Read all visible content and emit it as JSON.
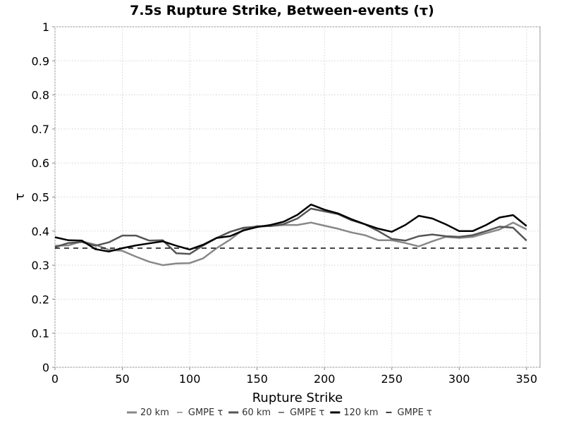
{
  "chart_data": {
    "type": "line",
    "title": "7.5s Rupture Strike, Between-events (τ)",
    "xlabel": "Rupture Strike",
    "ylabel": "τ",
    "xlim": [
      0,
      360
    ],
    "ylim": [
      0,
      1
    ],
    "xticks": [
      0,
      50,
      100,
      150,
      200,
      250,
      300,
      350
    ],
    "yticks": [
      0,
      0.1,
      0.2,
      0.3,
      0.4,
      0.5,
      0.6,
      0.7,
      0.8,
      0.9,
      1
    ],
    "grid": true,
    "legend_position": "bottom",
    "x": [
      0,
      10,
      20,
      30,
      40,
      50,
      60,
      70,
      80,
      90,
      100,
      110,
      120,
      130,
      140,
      150,
      160,
      170,
      180,
      190,
      200,
      210,
      220,
      230,
      240,
      250,
      260,
      270,
      280,
      290,
      300,
      310,
      320,
      330,
      340,
      350
    ],
    "series": [
      {
        "name": "20 km",
        "color": "#888888",
        "width": 2.5,
        "dash": "",
        "values": [
          0.357,
          0.358,
          0.37,
          0.36,
          0.345,
          0.342,
          0.325,
          0.31,
          0.3,
          0.305,
          0.306,
          0.32,
          0.35,
          0.375,
          0.405,
          0.415,
          0.415,
          0.418,
          0.418,
          0.425,
          0.416,
          0.407,
          0.396,
          0.388,
          0.373,
          0.373,
          0.365,
          0.355,
          0.37,
          0.383,
          0.38,
          0.383,
          0.394,
          0.405,
          0.425,
          0.405
        ]
      },
      {
        "name": "GMPE τ",
        "color": "#888888",
        "width": 1.2,
        "dash": "7,6",
        "values": [
          0.35,
          0.35,
          0.35,
          0.35,
          0.35,
          0.35,
          0.35,
          0.35,
          0.35,
          0.35,
          0.35,
          0.35,
          0.35,
          0.35,
          0.35,
          0.35,
          0.35,
          0.35,
          0.35,
          0.35,
          0.35,
          0.35,
          0.35,
          0.35,
          0.35,
          0.35,
          0.35,
          0.35,
          0.35,
          0.35,
          0.35,
          0.35,
          0.35,
          0.35,
          0.35,
          0.35
        ]
      },
      {
        "name": "60 km",
        "color": "#555555",
        "width": 2.5,
        "dash": "",
        "values": [
          0.353,
          0.365,
          0.368,
          0.357,
          0.367,
          0.387,
          0.387,
          0.372,
          0.373,
          0.335,
          0.333,
          0.358,
          0.38,
          0.398,
          0.41,
          0.413,
          0.415,
          0.421,
          0.437,
          0.466,
          0.458,
          0.45,
          0.432,
          0.42,
          0.4,
          0.377,
          0.372,
          0.385,
          0.39,
          0.385,
          0.383,
          0.388,
          0.4,
          0.413,
          0.41,
          0.372
        ]
      },
      {
        "name": "GMPE τ",
        "color": "#555555",
        "width": 1.2,
        "dash": "7,6",
        "values": [
          0.35,
          0.35,
          0.35,
          0.35,
          0.35,
          0.35,
          0.35,
          0.35,
          0.35,
          0.35,
          0.35,
          0.35,
          0.35,
          0.35,
          0.35,
          0.35,
          0.35,
          0.35,
          0.35,
          0.35,
          0.35,
          0.35,
          0.35,
          0.35,
          0.35,
          0.35,
          0.35,
          0.35,
          0.35,
          0.35,
          0.35,
          0.35,
          0.35,
          0.35,
          0.35,
          0.35
        ]
      },
      {
        "name": "120 km",
        "color": "#000000",
        "width": 2.5,
        "dash": "",
        "values": [
          0.382,
          0.373,
          0.372,
          0.347,
          0.34,
          0.35,
          0.358,
          0.364,
          0.37,
          0.357,
          0.346,
          0.36,
          0.38,
          0.385,
          0.402,
          0.412,
          0.418,
          0.428,
          0.448,
          0.478,
          0.463,
          0.452,
          0.435,
          0.42,
          0.407,
          0.398,
          0.418,
          0.445,
          0.437,
          0.42,
          0.4,
          0.4,
          0.418,
          0.44,
          0.447,
          0.415
        ]
      },
      {
        "name": "GMPE τ",
        "color": "#000000",
        "width": 1.2,
        "dash": "7,6",
        "values": [
          0.35,
          0.35,
          0.35,
          0.35,
          0.35,
          0.35,
          0.35,
          0.35,
          0.35,
          0.35,
          0.35,
          0.35,
          0.35,
          0.35,
          0.35,
          0.35,
          0.35,
          0.35,
          0.35,
          0.35,
          0.35,
          0.35,
          0.35,
          0.35,
          0.35,
          0.35,
          0.35,
          0.35,
          0.35,
          0.35,
          0.35,
          0.35,
          0.35,
          0.35,
          0.35,
          0.35
        ]
      }
    ]
  }
}
